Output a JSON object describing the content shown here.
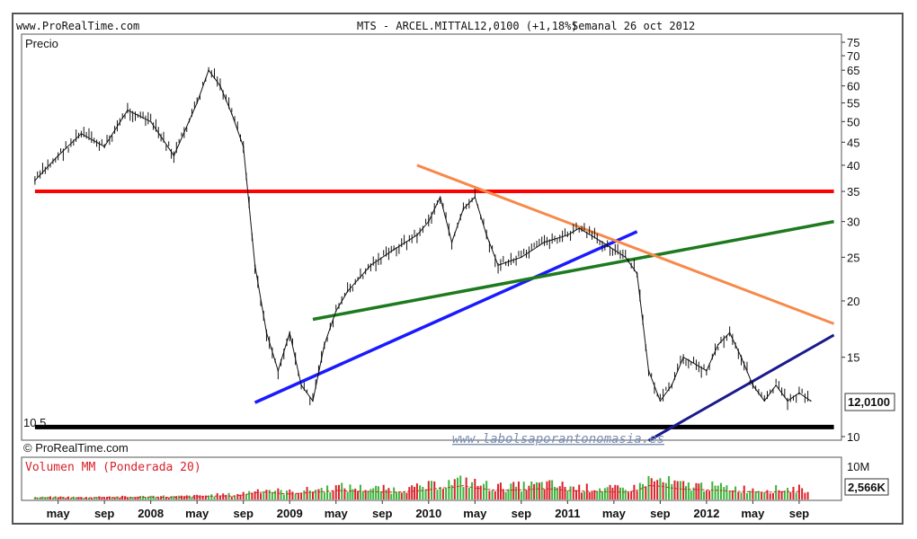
{
  "header": {
    "site": "www.ProRealTime.com",
    "instrument": "MTS - ARCEL.MITTAL",
    "quote": "12,0100 (+1,18%)",
    "period": "Semanal  26 oct 2012"
  },
  "footer_brand": "© ProRealTime.com",
  "watermark": "www.labolsaporantonomasia.es",
  "colors": {
    "background": "#ffffff",
    "frame": "#555555",
    "price_bars": "#111111",
    "resistance_red": "#ff0000",
    "support_black": "#000000",
    "trend_blue": "#1a1aff",
    "trend_green": "#1e7a1e",
    "trend_orange": "#f7894a",
    "trend_navy": "#1a1a8c",
    "volume_up": "#3bb53b",
    "volume_down": "#d9222a"
  },
  "chart_data": [
    {
      "type": "line",
      "title": "Precio",
      "scale": "log",
      "ylim": [
        10,
        75
      ],
      "y_ticks": [
        "75",
        "70",
        "65",
        "60",
        "55",
        "50",
        "45",
        "40",
        "35",
        "30",
        "25",
        "20",
        "15",
        "10"
      ],
      "x_ticks": [
        "may",
        "sep",
        "2008",
        "may",
        "sep",
        "2009",
        "may",
        "sep",
        "2010",
        "may",
        "sep",
        "2011",
        "may",
        "sep",
        "2012",
        "may",
        "sep"
      ],
      "last_value": "12,0100",
      "support_label": "10,5",
      "x": [
        "2007-03",
        "2007-05",
        "2007-07",
        "2007-09",
        "2007-11",
        "2008-01",
        "2008-03",
        "2008-05",
        "2008-06",
        "2008-07",
        "2008-08",
        "2008-09",
        "2008-10",
        "2008-11",
        "2008-12",
        "2009-01",
        "2009-02",
        "2009-03",
        "2009-04",
        "2009-05",
        "2009-06",
        "2009-08",
        "2009-10",
        "2009-12",
        "2010-01",
        "2010-02",
        "2010-03",
        "2010-04",
        "2010-05",
        "2010-06",
        "2010-07",
        "2010-09",
        "2010-11",
        "2011-01",
        "2011-02",
        "2011-04",
        "2011-06",
        "2011-07",
        "2011-08",
        "2011-09",
        "2011-10",
        "2011-11",
        "2012-01",
        "2012-02",
        "2012-03",
        "2012-04",
        "2012-05",
        "2012-06",
        "2012-07",
        "2012-08",
        "2012-09",
        "2012-10"
      ],
      "series": [
        {
          "values": [
            37,
            42,
            47,
            44,
            53,
            50,
            42,
            55,
            65,
            60,
            52,
            44,
            24,
            17,
            14,
            17,
            13,
            12,
            16,
            19,
            21,
            24,
            26,
            28,
            30,
            34,
            27,
            32,
            34,
            28,
            24,
            25,
            27,
            28,
            29,
            27,
            25,
            23,
            14,
            12,
            13,
            15,
            14,
            16,
            17,
            15,
            13,
            12,
            13,
            12,
            12.5,
            12
          ]
        }
      ],
      "lines": [
        {
          "name": "red",
          "from": [
            "2007-03",
            35
          ],
          "to": [
            "2012-12",
            35
          ]
        },
        {
          "name": "black",
          "from": [
            "2007-03",
            10.5
          ],
          "to": [
            "2012-12",
            10.5
          ]
        },
        {
          "name": "blue",
          "from": [
            "2008-10",
            11.9
          ],
          "to": [
            "2011-07",
            28.5
          ]
        },
        {
          "name": "green",
          "from": [
            "2009-03",
            18.2
          ],
          "to": [
            "2012-12",
            30
          ]
        },
        {
          "name": "orange",
          "from": [
            "2009-12",
            40
          ],
          "to": [
            "2012-12",
            17.8
          ]
        },
        {
          "name": "navy",
          "from": [
            "2011-08",
            9.8
          ],
          "to": [
            "2012-12",
            16.8
          ]
        }
      ]
    },
    {
      "type": "bar",
      "title": "Volumen MM (Ponderada 20)",
      "y_ticks": [
        "10M"
      ],
      "last_value": "2,566K",
      "values": [
        0.5,
        0.6,
        0.5,
        0.7,
        0.6,
        0.8,
        0.7,
        0.9,
        1.0,
        1.2,
        1.1,
        1.5,
        2.2,
        2.5,
        2.0,
        1.8,
        2.1,
        2.4,
        2.6,
        3.0,
        2.8,
        2.6,
        2.4,
        2.8,
        3.2,
        3.8,
        4.0,
        4.6,
        3.8,
        3.4,
        3.0,
        3.2,
        3.6,
        3.0,
        2.8,
        2.6,
        2.4,
        3.0,
        4.6,
        4.4,
        3.8,
        3.4,
        3.2,
        3.0,
        2.8,
        2.6,
        2.5,
        2.4,
        2.5,
        2.6,
        2.6,
        2.566
      ]
    }
  ]
}
